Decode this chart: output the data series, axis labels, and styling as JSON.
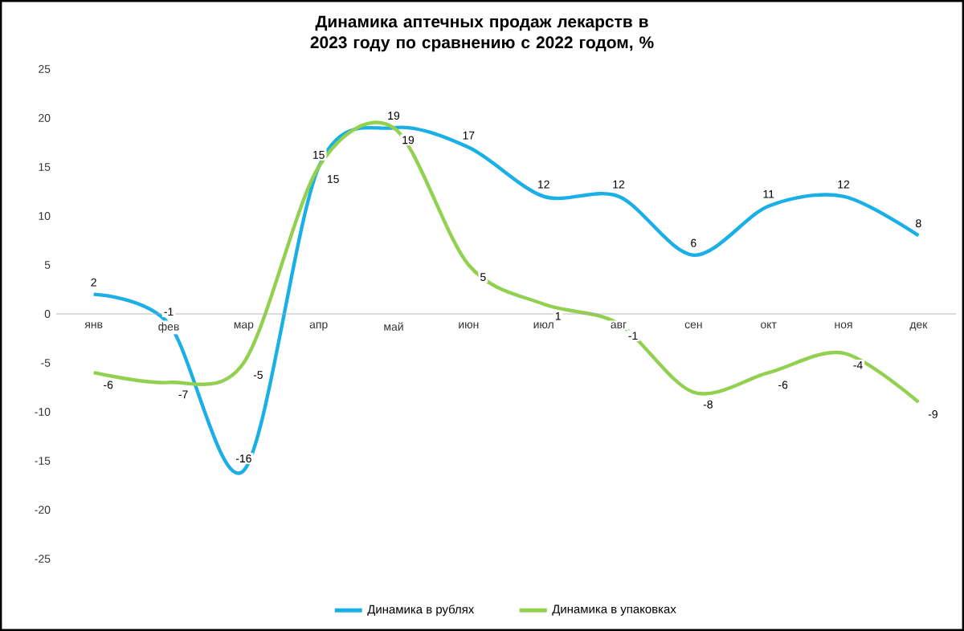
{
  "chart_data": {
    "type": "line",
    "title": "Динамика аптечных продаж лекарств в 2023 году по сравнению с 2022 годом, %",
    "categories": [
      "янв",
      "фев",
      "мар",
      "апр",
      "май",
      "июн",
      "июл",
      "авг",
      "сен",
      "окт",
      "ноя",
      "дек"
    ],
    "series": [
      {
        "name": "Динамика в рублях",
        "color": "#1aafe6",
        "values": [
          2,
          -1,
          -16,
          15,
          19,
          17,
          12,
          12,
          6,
          11,
          12,
          8
        ]
      },
      {
        "name": "Динамика в упаковках",
        "color": "#92d050",
        "values": [
          -6,
          -7,
          -5,
          15,
          19,
          5,
          1,
          -1,
          -8,
          -6,
          -4,
          -9
        ]
      }
    ],
    "ylim": [
      -25,
      25
    ],
    "yticks": [
      -25,
      -20,
      -15,
      -10,
      -5,
      0,
      5,
      10,
      15,
      20,
      25
    ],
    "grid": false,
    "legend": "bottom",
    "data_labels": true,
    "marker": "none",
    "line_style": "solid"
  }
}
